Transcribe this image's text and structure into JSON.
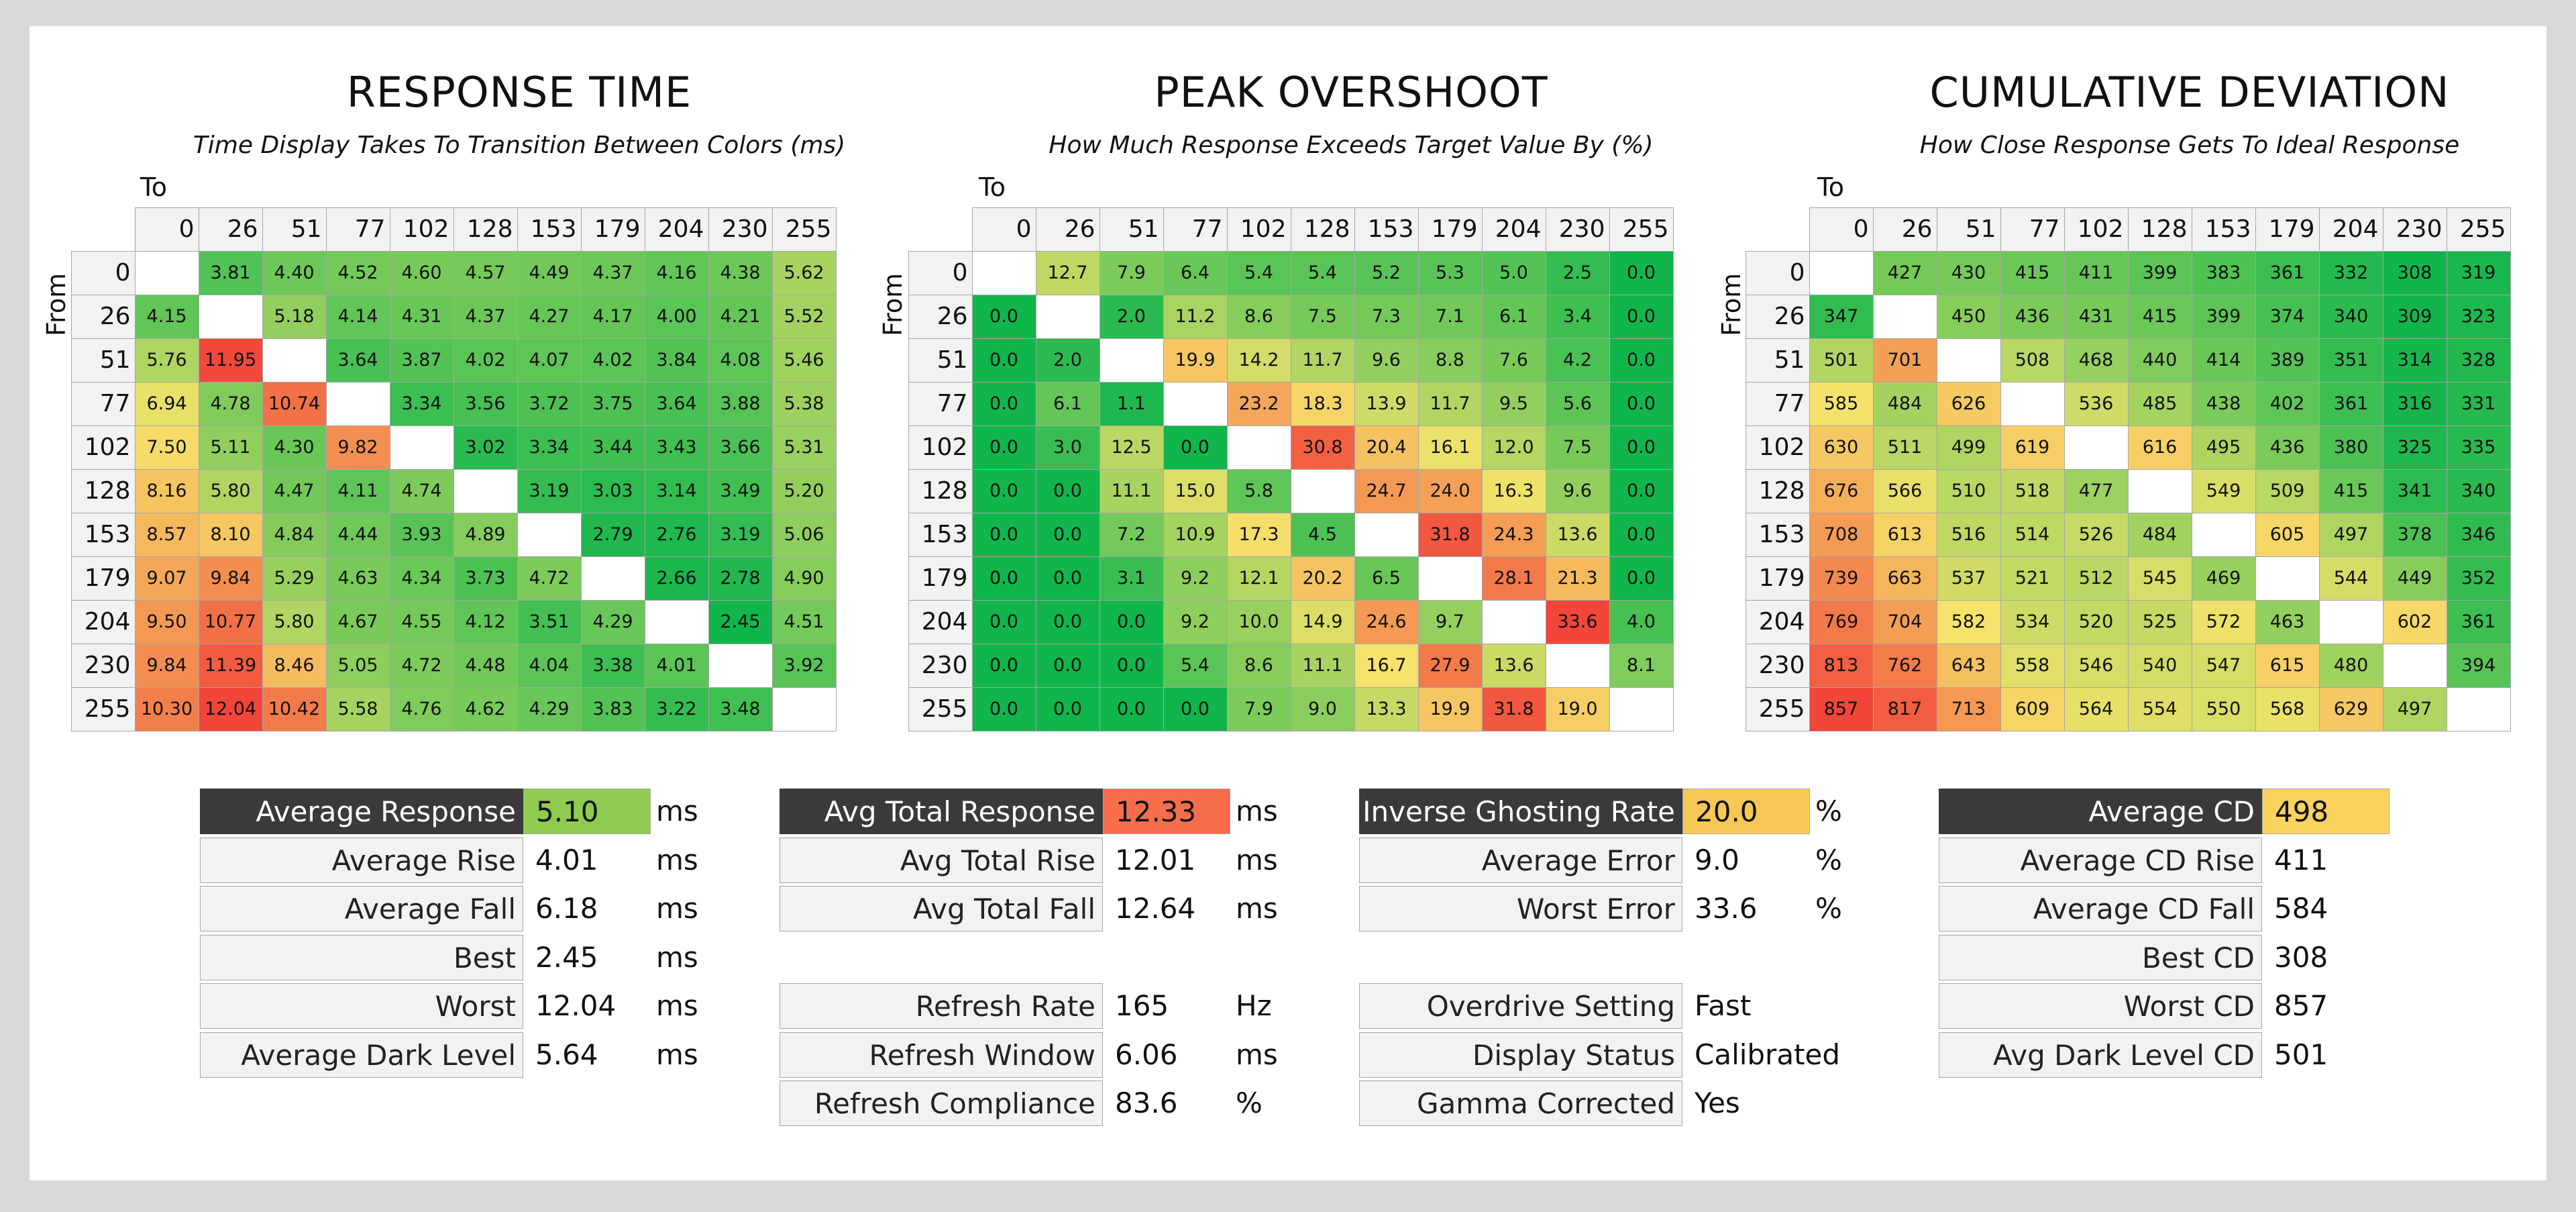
{
  "chart_data": [
    {
      "type": "heatmap",
      "title": "RESPONSE TIME",
      "subtitle": "Time Display Takes To Transition Between Colors (ms)",
      "xlabel": "To",
      "ylabel": "From",
      "x_categories": [
        "0",
        "26",
        "51",
        "77",
        "102",
        "128",
        "153",
        "179",
        "204",
        "230",
        "255"
      ],
      "y_categories": [
        "0",
        "26",
        "51",
        "77",
        "102",
        "128",
        "153",
        "179",
        "204",
        "230",
        "255"
      ],
      "color_range": [
        2.45,
        12.04
      ],
      "values": [
        [
          null,
          "3.81",
          "4.40",
          "4.52",
          "4.60",
          "4.57",
          "4.49",
          "4.37",
          "4.16",
          "4.38",
          "5.62"
        ],
        [
          "4.15",
          null,
          "5.18",
          "4.14",
          "4.31",
          "4.37",
          "4.27",
          "4.17",
          "4.00",
          "4.21",
          "5.52"
        ],
        [
          "5.76",
          "11.95",
          null,
          "3.64",
          "3.87",
          "4.02",
          "4.07",
          "4.02",
          "3.84",
          "4.08",
          "5.46"
        ],
        [
          "6.94",
          "4.78",
          "10.74",
          null,
          "3.34",
          "3.56",
          "3.72",
          "3.75",
          "3.64",
          "3.88",
          "5.38"
        ],
        [
          "7.50",
          "5.11",
          "4.30",
          "9.82",
          null,
          "3.02",
          "3.34",
          "3.44",
          "3.43",
          "3.66",
          "5.31"
        ],
        [
          "8.16",
          "5.80",
          "4.47",
          "4.11",
          "4.74",
          null,
          "3.19",
          "3.03",
          "3.14",
          "3.49",
          "5.20"
        ],
        [
          "8.57",
          "8.10",
          "4.84",
          "4.44",
          "3.93",
          "4.89",
          null,
          "2.79",
          "2.76",
          "3.19",
          "5.06"
        ],
        [
          "9.07",
          "9.84",
          "5.29",
          "4.63",
          "4.34",
          "3.73",
          "4.72",
          null,
          "2.66",
          "2.78",
          "4.90"
        ],
        [
          "9.50",
          "10.77",
          "5.80",
          "4.67",
          "4.55",
          "4.12",
          "3.51",
          "4.29",
          null,
          "2.45",
          "4.51"
        ],
        [
          "9.84",
          "11.39",
          "8.46",
          "5.05",
          "4.72",
          "4.48",
          "4.04",
          "3.38",
          "4.01",
          null,
          "3.92"
        ],
        [
          "10.30",
          "12.04",
          "10.42",
          "5.58",
          "4.76",
          "4.62",
          "4.29",
          "3.83",
          "3.22",
          "3.48",
          null
        ]
      ]
    },
    {
      "type": "heatmap",
      "title": "PEAK OVERSHOOT",
      "subtitle": "How Much Response Exceeds Target Value By (%)",
      "xlabel": "To",
      "ylabel": "From",
      "x_categories": [
        "0",
        "26",
        "51",
        "77",
        "102",
        "128",
        "153",
        "179",
        "204",
        "230",
        "255"
      ],
      "y_categories": [
        "0",
        "26",
        "51",
        "77",
        "102",
        "128",
        "153",
        "179",
        "204",
        "230",
        "255"
      ],
      "color_range": [
        0,
        33.6
      ],
      "values": [
        [
          null,
          "12.7",
          "7.9",
          "6.4",
          "5.4",
          "5.4",
          "5.2",
          "5.3",
          "5.0",
          "2.5",
          "0.0"
        ],
        [
          "0.0",
          null,
          "2.0",
          "11.2",
          "8.6",
          "7.5",
          "7.3",
          "7.1",
          "6.1",
          "3.4",
          "0.0"
        ],
        [
          "0.0",
          "2.0",
          null,
          "19.9",
          "14.2",
          "11.7",
          "9.6",
          "8.8",
          "7.6",
          "4.2",
          "0.0"
        ],
        [
          "0.0",
          "6.1",
          "1.1",
          null,
          "23.2",
          "18.3",
          "13.9",
          "11.7",
          "9.5",
          "5.6",
          "0.0"
        ],
        [
          "0.0",
          "3.0",
          "12.5",
          "0.0",
          null,
          "30.8",
          "20.4",
          "16.1",
          "12.0",
          "7.5",
          "0.0"
        ],
        [
          "0.0",
          "0.0",
          "11.1",
          "15.0",
          "5.8",
          null,
          "24.7",
          "24.0",
          "16.3",
          "9.6",
          "0.0"
        ],
        [
          "0.0",
          "0.0",
          "7.2",
          "10.9",
          "17.3",
          "4.5",
          null,
          "31.8",
          "24.3",
          "13.6",
          "0.0"
        ],
        [
          "0.0",
          "0.0",
          "3.1",
          "9.2",
          "12.1",
          "20.2",
          "6.5",
          null,
          "28.1",
          "21.3",
          "0.0"
        ],
        [
          "0.0",
          "0.0",
          "0.0",
          "9.2",
          "10.0",
          "14.9",
          "24.6",
          "9.7",
          null,
          "33.6",
          "4.0"
        ],
        [
          "0.0",
          "0.0",
          "0.0",
          "5.4",
          "8.6",
          "11.1",
          "16.7",
          "27.9",
          "13.6",
          null,
          "8.1"
        ],
        [
          "0.0",
          "0.0",
          "0.0",
          "0.0",
          "7.9",
          "9.0",
          "13.3",
          "19.9",
          "31.8",
          "19.0",
          null
        ]
      ]
    },
    {
      "type": "heatmap",
      "title": "CUMULATIVE DEVIATION",
      "subtitle": "How Close Response Gets To Ideal Response",
      "xlabel": "To",
      "ylabel": "From",
      "x_categories": [
        "0",
        "26",
        "51",
        "77",
        "102",
        "128",
        "153",
        "179",
        "204",
        "230",
        "255"
      ],
      "y_categories": [
        "0",
        "26",
        "51",
        "77",
        "102",
        "128",
        "153",
        "179",
        "204",
        "230",
        "255"
      ],
      "color_range": [
        308,
        857
      ],
      "values": [
        [
          null,
          "427",
          "430",
          "415",
          "411",
          "399",
          "383",
          "361",
          "332",
          "308",
          "319"
        ],
        [
          "347",
          null,
          "450",
          "436",
          "431",
          "415",
          "399",
          "374",
          "340",
          "309",
          "323"
        ],
        [
          "501",
          "701",
          null,
          "508",
          "468",
          "440",
          "414",
          "389",
          "351",
          "314",
          "328"
        ],
        [
          "585",
          "484",
          "626",
          null,
          "536",
          "485",
          "438",
          "402",
          "361",
          "316",
          "331"
        ],
        [
          "630",
          "511",
          "499",
          "619",
          null,
          "616",
          "495",
          "436",
          "380",
          "325",
          "335"
        ],
        [
          "676",
          "566",
          "510",
          "518",
          "477",
          null,
          "549",
          "509",
          "415",
          "341",
          "340"
        ],
        [
          "708",
          "613",
          "516",
          "514",
          "526",
          "484",
          null,
          "605",
          "497",
          "378",
          "346"
        ],
        [
          "739",
          "663",
          "537",
          "521",
          "512",
          "545",
          "469",
          null,
          "544",
          "449",
          "352"
        ],
        [
          "769",
          "704",
          "582",
          "534",
          "520",
          "525",
          "572",
          "463",
          null,
          "602",
          "361"
        ],
        [
          "813",
          "762",
          "643",
          "558",
          "546",
          "540",
          "547",
          "615",
          "480",
          null,
          "394"
        ],
        [
          "857",
          "817",
          "713",
          "609",
          "564",
          "554",
          "550",
          "568",
          "629",
          "497",
          null
        ]
      ]
    }
  ],
  "colors": {
    "good": "#10b54c",
    "mid": "#f6e36b",
    "bad": "#f2463a",
    "header_dark": "#3a3a3a",
    "avg_response_fill": "#8ecb50",
    "avg_total_response_fill": "#f86e4c",
    "inverse_ghosting_fill": "#f7c855",
    "avg_cd_fill": "#f9d35c"
  },
  "stats": {
    "response": [
      {
        "label": "Average Response",
        "value": "5.10",
        "unit": "ms",
        "highlight": true
      },
      {
        "label": "Average Rise",
        "value": "4.01",
        "unit": "ms"
      },
      {
        "label": "Average Fall",
        "value": "6.18",
        "unit": "ms"
      },
      {
        "label": "Best",
        "value": "2.45",
        "unit": "ms"
      },
      {
        "label": "Worst",
        "value": "12.04",
        "unit": "ms"
      },
      {
        "label": "Average Dark Level",
        "value": "5.64",
        "unit": "ms"
      }
    ],
    "total": [
      {
        "label": "Avg Total Response",
        "value": "12.33",
        "unit": "ms",
        "highlight": true
      },
      {
        "label": "Avg Total Rise",
        "value": "12.01",
        "unit": "ms"
      },
      {
        "label": "Avg Total Fall",
        "value": "12.64",
        "unit": "ms"
      }
    ],
    "refresh": [
      {
        "label": "Refresh Rate",
        "value": "165",
        "unit": "Hz"
      },
      {
        "label": "Refresh Window",
        "value": "6.06",
        "unit": "ms"
      },
      {
        "label": "Refresh Compliance",
        "value": "83.6",
        "unit": "%"
      }
    ],
    "overshoot": [
      {
        "label": "Inverse Ghosting Rate",
        "value": "20.0",
        "unit": "%",
        "highlight": true
      },
      {
        "label": "Average Error",
        "value": "9.0",
        "unit": "%"
      },
      {
        "label": "Worst Error",
        "value": "33.6",
        "unit": "%"
      }
    ],
    "settings": [
      {
        "label": "Overdrive Setting",
        "value": "Fast",
        "unit": ""
      },
      {
        "label": "Display Status",
        "value": "Calibrated",
        "unit": ""
      },
      {
        "label": "Gamma Corrected",
        "value": "Yes",
        "unit": ""
      }
    ],
    "cd": [
      {
        "label": "Average CD",
        "value": "498",
        "unit": "",
        "highlight": true
      },
      {
        "label": "Average CD Rise",
        "value": "411",
        "unit": ""
      },
      {
        "label": "Average CD Fall",
        "value": "584",
        "unit": ""
      },
      {
        "label": "Best CD",
        "value": "308",
        "unit": ""
      },
      {
        "label": "Worst CD",
        "value": "857",
        "unit": ""
      },
      {
        "label": "Avg Dark Level CD",
        "value": "501",
        "unit": ""
      }
    ]
  }
}
